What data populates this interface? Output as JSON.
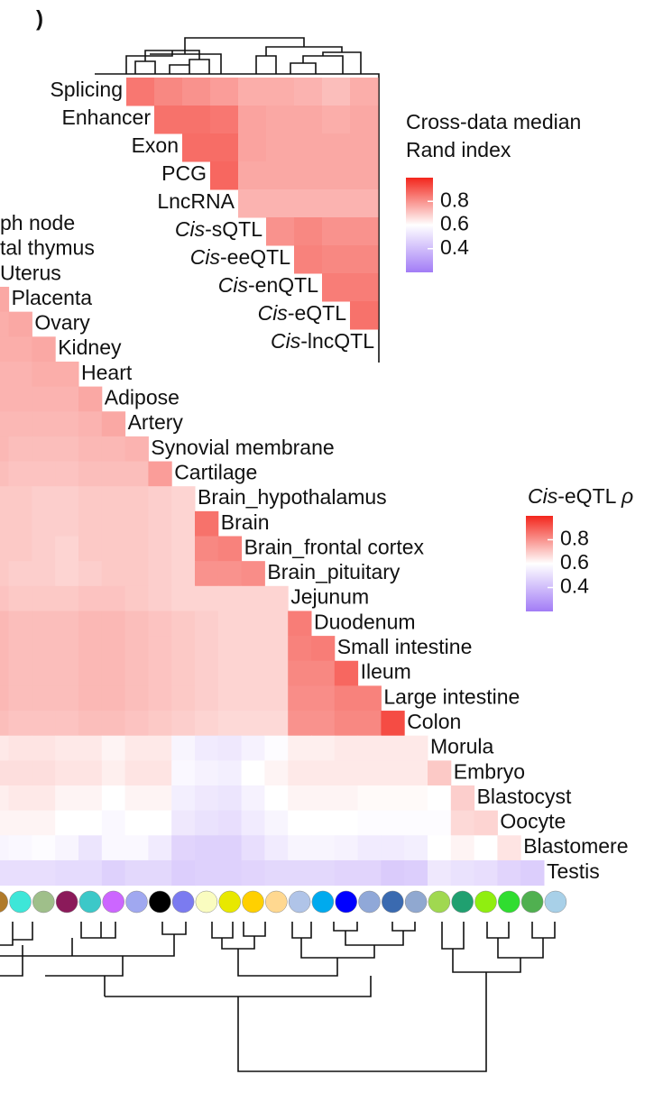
{
  "panel_label": ")",
  "chart_data": [
    {
      "type": "heatmap",
      "legend_title": [
        "Cross-data median",
        "Rand index"
      ],
      "color_range": [
        0.2,
        1.0
      ],
      "colors": [
        "#a27cf6",
        "#ffffff",
        "#f3261c"
      ],
      "legend_ticks": [
        0.8,
        0.6,
        0.4
      ],
      "rows": [
        "Splicing",
        "Enhancer",
        "Exon",
        "PCG",
        "LncRNA",
        {
          "italic": "Cis",
          "text": "-sQTL"
        },
        {
          "italic": "Cis",
          "text": "-eeQTL"
        },
        {
          "italic": "Cis",
          "text": "-enQTL"
        },
        {
          "italic": "Cis",
          "text": "-eQTL"
        },
        {
          "italic": "Cis",
          "text": "-lncQTL"
        }
      ],
      "values": [
        [
          0.85,
          0.82,
          0.8,
          0.78,
          0.75,
          0.75,
          0.74,
          0.72,
          0.75
        ],
        [
          0.86,
          0.86,
          0.85,
          0.77,
          0.76,
          0.76,
          0.75,
          0.76
        ],
        [
          0.87,
          0.87,
          0.77,
          0.76,
          0.76,
          0.76,
          0.76
        ],
        [
          0.88,
          0.76,
          0.76,
          0.76,
          0.76,
          0.76
        ],
        [
          0.74,
          0.74,
          0.74,
          0.74,
          0.74
        ],
        [
          0.8,
          0.82,
          0.8,
          0.8
        ],
        [
          0.83,
          0.82,
          0.82
        ],
        [
          0.84,
          0.84
        ],
        [
          0.86
        ],
        []
      ]
    },
    {
      "type": "heatmap",
      "legend_title": [
        {
          "italic": "Cis"
        },
        {
          "text": "-eQTL "
        },
        {
          "italic": "ρ"
        }
      ],
      "color_range": [
        0.2,
        1.0
      ],
      "colors": [
        "#a27cf6",
        "#ffffff",
        "#f3261c"
      ],
      "legend_ticks": [
        0.8,
        0.6,
        0.4
      ],
      "rows": [
        "ph node",
        "tal thymus",
        "Uterus",
        "Placenta",
        "Ovary",
        "Kidney",
        "Heart",
        "Adipose",
        "Artery",
        "Synovial membrane",
        "Cartilage",
        "Brain_hypothalamus",
        "Brain",
        "Brain_frontal cortex",
        "Brain_pituitary",
        "Jejunum",
        "Duodenum",
        "Small intestine",
        "Ileum",
        "Large intestine",
        "Colon",
        "Morula",
        "Embryo",
        "Blastocyst",
        "Oocyte",
        "Blastomere",
        "Testis"
      ],
      "column_colors": [
        "#b07a2a",
        "#3ee6d8",
        "#9fbf8a",
        "#8b1a5a",
        "#3cc8c8",
        "#cc66ff",
        "#a0a8f0",
        "#000000",
        "#7b7bf0",
        "#fafcc0",
        "#e8e800",
        "#ffd000",
        "#ffd890",
        "#b0c4e8",
        "#00aaee",
        "#0000ff",
        "#90a8d8",
        "#3a6ab0",
        "#90a8d0",
        "#a0d850",
        "#20a070",
        "#90ee10",
        "#30dd30",
        "#50b050",
        "#a8d0e8"
      ],
      "values": [
        [],
        [],
        [],
        [
          0.76
        ],
        [
          0.75,
          0.76
        ],
        [
          0.75,
          0.75,
          0.76
        ],
        [
          0.74,
          0.74,
          0.75,
          0.75
        ],
        [
          0.74,
          0.74,
          0.74,
          0.74,
          0.76
        ],
        [
          0.73,
          0.73,
          0.73,
          0.73,
          0.74,
          0.76
        ],
        [
          0.73,
          0.72,
          0.72,
          0.72,
          0.73,
          0.73,
          0.74
        ],
        [
          0.72,
          0.71,
          0.71,
          0.71,
          0.72,
          0.72,
          0.72,
          0.78
        ],
        [
          0.7,
          0.7,
          0.69,
          0.69,
          0.7,
          0.7,
          0.7,
          0.69,
          0.68
        ],
        [
          0.7,
          0.7,
          0.69,
          0.69,
          0.7,
          0.7,
          0.7,
          0.69,
          0.68,
          0.86
        ],
        [
          0.7,
          0.7,
          0.69,
          0.68,
          0.7,
          0.7,
          0.7,
          0.69,
          0.68,
          0.82,
          0.83
        ],
        [
          0.7,
          0.69,
          0.69,
          0.68,
          0.69,
          0.7,
          0.7,
          0.69,
          0.68,
          0.8,
          0.8,
          0.81
        ],
        [
          0.71,
          0.7,
          0.7,
          0.7,
          0.71,
          0.71,
          0.7,
          0.69,
          0.68,
          0.68,
          0.68,
          0.68,
          0.68
        ],
        [
          0.73,
          0.72,
          0.72,
          0.72,
          0.73,
          0.73,
          0.72,
          0.71,
          0.7,
          0.69,
          0.68,
          0.68,
          0.68,
          0.84
        ],
        [
          0.73,
          0.72,
          0.72,
          0.72,
          0.73,
          0.73,
          0.72,
          0.71,
          0.7,
          0.69,
          0.68,
          0.68,
          0.68,
          0.83,
          0.84
        ],
        [
          0.73,
          0.72,
          0.72,
          0.72,
          0.73,
          0.73,
          0.72,
          0.71,
          0.7,
          0.69,
          0.68,
          0.68,
          0.68,
          0.82,
          0.82,
          0.88
        ],
        [
          0.73,
          0.72,
          0.72,
          0.72,
          0.73,
          0.73,
          0.72,
          0.71,
          0.7,
          0.69,
          0.68,
          0.68,
          0.68,
          0.81,
          0.81,
          0.83,
          0.83
        ],
        [
          0.72,
          0.71,
          0.71,
          0.71,
          0.72,
          0.72,
          0.71,
          0.7,
          0.69,
          0.68,
          0.67,
          0.67,
          0.67,
          0.8,
          0.8,
          0.82,
          0.82,
          0.93
        ],
        [
          0.64,
          0.65,
          0.65,
          0.64,
          0.64,
          0.62,
          0.64,
          0.64,
          0.57,
          0.54,
          0.53,
          0.56,
          0.59,
          0.63,
          0.63,
          0.64,
          0.64,
          0.64,
          0.64
        ],
        [
          0.66,
          0.66,
          0.66,
          0.65,
          0.65,
          0.63,
          0.65,
          0.65,
          0.58,
          0.56,
          0.55,
          0.6,
          0.62,
          0.64,
          0.64,
          0.64,
          0.64,
          0.64,
          0.64,
          0.7
        ],
        [
          0.63,
          0.64,
          0.64,
          0.62,
          0.62,
          0.6,
          0.62,
          0.62,
          0.55,
          0.53,
          0.52,
          0.56,
          0.6,
          0.62,
          0.62,
          0.62,
          0.61,
          0.61,
          0.61,
          0.6,
          0.69
        ],
        [
          0.62,
          0.62,
          0.62,
          0.6,
          0.6,
          0.58,
          0.6,
          0.6,
          0.53,
          0.51,
          0.5,
          0.54,
          0.57,
          0.6,
          0.6,
          0.6,
          0.59,
          0.59,
          0.59,
          0.59,
          0.67,
          0.68
        ],
        [
          0.57,
          0.58,
          0.59,
          0.57,
          0.52,
          0.58,
          0.58,
          0.54,
          0.47,
          0.46,
          0.46,
          0.5,
          0.54,
          0.57,
          0.57,
          0.56,
          0.54,
          0.54,
          0.55,
          0.6,
          0.62,
          0.6,
          0.65
        ],
        [
          0.5,
          0.5,
          0.5,
          0.49,
          0.49,
          0.46,
          0.48,
          0.48,
          0.45,
          0.46,
          0.46,
          0.47,
          0.48,
          0.48,
          0.48,
          0.47,
          0.47,
          0.44,
          0.45,
          0.53,
          0.51,
          0.5,
          0.47,
          0.45
        ]
      ]
    }
  ]
}
